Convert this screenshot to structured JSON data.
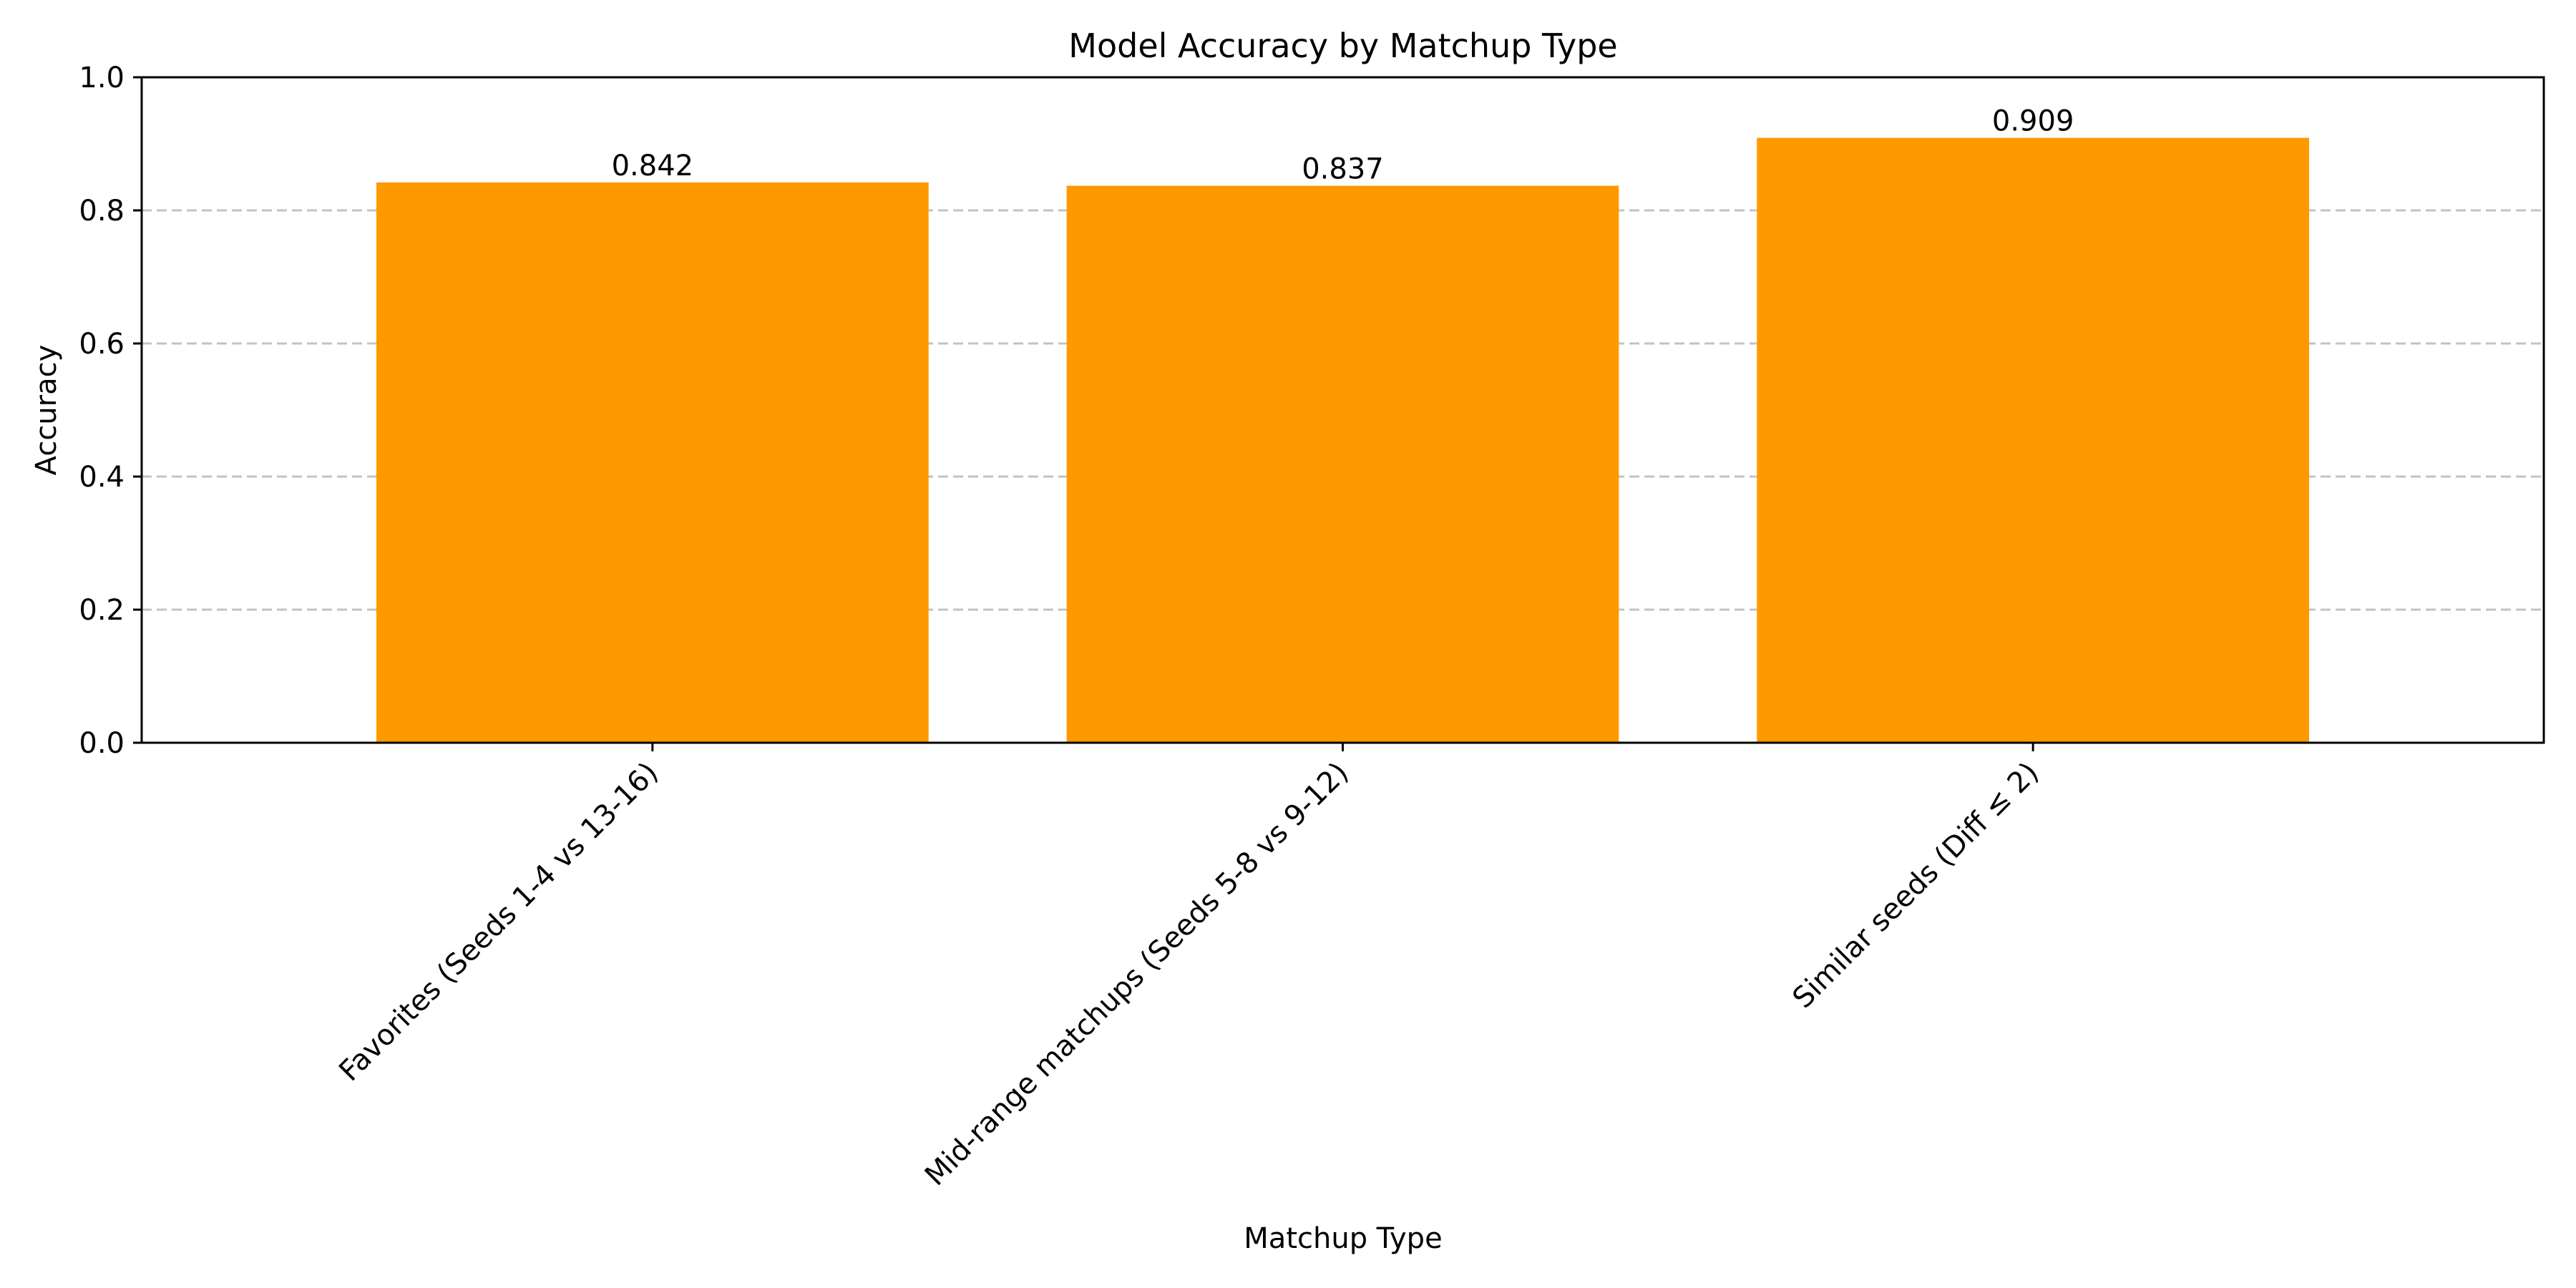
{
  "chart_data": {
    "type": "bar",
    "title": "Model Accuracy by Matchup Type",
    "xlabel": "Matchup Type",
    "ylabel": "Accuracy",
    "categories": [
      "Favorites (Seeds 1-4 vs 13-16)",
      "Mid-range matchups (Seeds 5-8 vs 9-12)",
      "Similar seeds (Diff ≤ 2)"
    ],
    "values": [
      0.842,
      0.837,
      0.909
    ],
    "value_labels": [
      "0.842",
      "0.837",
      "0.909"
    ],
    "ylim": [
      0,
      1.0
    ],
    "yticks": [
      0.0,
      0.2,
      0.4,
      0.6,
      0.8,
      1.0
    ],
    "ytick_labels": [
      "0.0",
      "0.2",
      "0.4",
      "0.6",
      "0.8",
      "1.0"
    ],
    "grid": "y-dashed",
    "bar_color": "#ff9900"
  }
}
